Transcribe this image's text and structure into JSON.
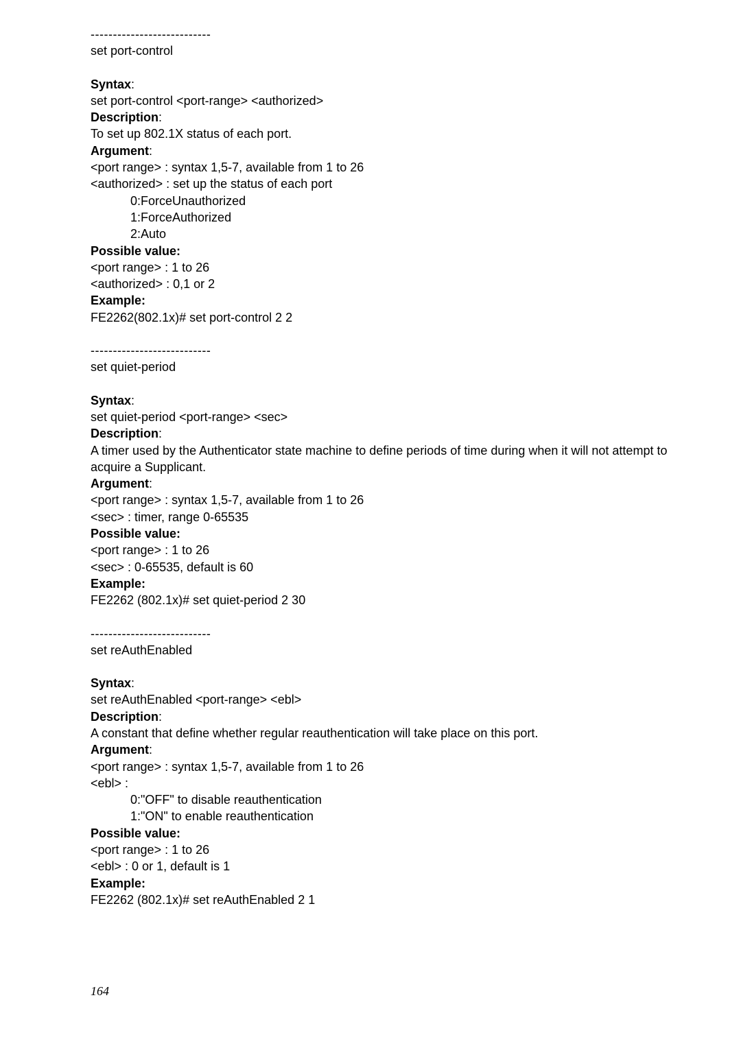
{
  "sections": [
    {
      "separator": "---------------------------"
    },
    {
      "title": "set port-control"
    },
    {
      "blank": true
    },
    {
      "label": "Syntax",
      "colon": ":"
    },
    {
      "text": "set port-control <port-range> <authorized>"
    },
    {
      "label": "Description",
      "colon": ":"
    },
    {
      "text": "To set up 802.1X status of each port."
    },
    {
      "label": "Argument",
      "colon": ":"
    },
    {
      "text": "<port range> : syntax 1,5-7, available from 1 to 26"
    },
    {
      "text": "<authorized> : set up the status of each port"
    },
    {
      "indent": "0:ForceUnauthorized"
    },
    {
      "indent": "1:ForceAuthorized"
    },
    {
      "indent": "2:Auto"
    },
    {
      "label": "Possible value:"
    },
    {
      "text": "<port range> : 1 to 26"
    },
    {
      "text": "<authorized> : 0,1 or 2"
    },
    {
      "label": "Example:"
    },
    {
      "text": "FE2262(802.1x)# set port-control 2 2"
    },
    {
      "blank": true
    },
    {
      "separator": "---------------------------"
    },
    {
      "title": "set quiet-period"
    },
    {
      "blank": true
    },
    {
      "label": "Syntax",
      "colon": ":"
    },
    {
      "text": "set quiet-period <port-range> <sec>"
    },
    {
      "label": "Description",
      "colon": ":"
    },
    {
      "text": "A timer used by the Authenticator state machine to define periods of time during when it will not attempt to acquire a Supplicant."
    },
    {
      "label": "Argument",
      "colon": ":"
    },
    {
      "text": "<port range> : syntax 1,5-7, available from 1 to 26"
    },
    {
      "text": "<sec> : timer, range 0-65535"
    },
    {
      "label": "Possible value:"
    },
    {
      "text": "<port range> : 1 to 26"
    },
    {
      "text": "<sec> : 0-65535, default is 60"
    },
    {
      "label": "Example:"
    },
    {
      "text": "FE2262 (802.1x)# set quiet-period 2 30"
    },
    {
      "blank": true
    },
    {
      "separator": "---------------------------"
    },
    {
      "title": "set reAuthEnabled"
    },
    {
      "blank": true
    },
    {
      "label": "Syntax",
      "colon": ":"
    },
    {
      "text": "set reAuthEnabled <port-range> <ebl>"
    },
    {
      "label": "Description",
      "colon": ":"
    },
    {
      "text": "A constant that define whether regular reauthentication will take place on this port."
    },
    {
      "label": "Argument",
      "colon": ":"
    },
    {
      "text": "<port range> : syntax 1,5-7, available from 1 to 26"
    },
    {
      "text": "<ebl> :"
    },
    {
      "indent": "0:\"OFF\" to disable reauthentication"
    },
    {
      "indent": "1:\"ON\" to enable reauthentication"
    },
    {
      "label": "Possible value:"
    },
    {
      "text": "<port range> : 1 to 26"
    },
    {
      "text": "<ebl> : 0 or 1, default is 1"
    },
    {
      "label": "Example:"
    },
    {
      "text": "FE2262 (802.1x)# set reAuthEnabled 2 1"
    }
  ],
  "page_number": "164"
}
